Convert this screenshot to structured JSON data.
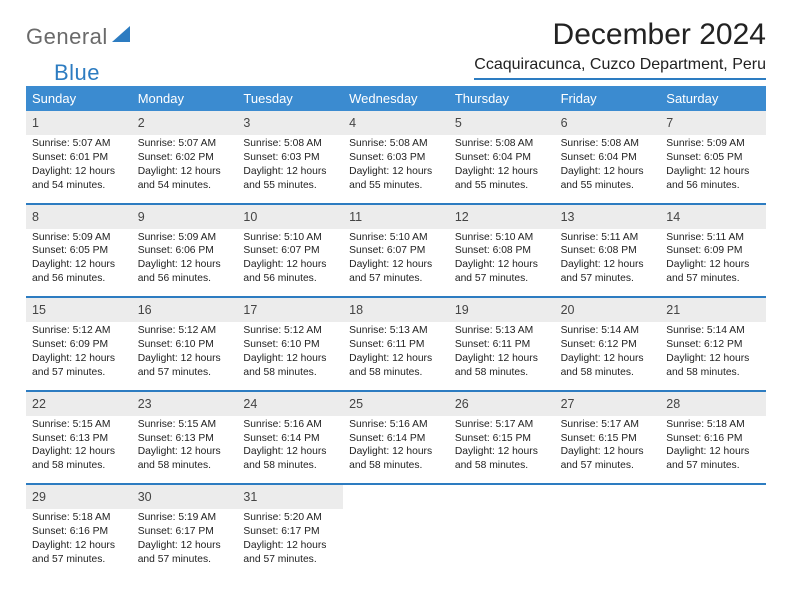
{
  "brand": {
    "part1": "General",
    "part2": "Blue"
  },
  "title": "December 2024",
  "location": "Ccaquiracunca, Cuzco Department, Peru",
  "colors": {
    "header_bg": "#3b8bd0",
    "rule": "#2d7cc1",
    "daynum_bg": "#ececec",
    "text": "#222222",
    "logo_gray": "#6a6a6a",
    "logo_blue": "#2d7cc1"
  },
  "day_headers": [
    "Sunday",
    "Monday",
    "Tuesday",
    "Wednesday",
    "Thursday",
    "Friday",
    "Saturday"
  ],
  "weeks": [
    [
      {
        "n": "1",
        "sr": "5:07 AM",
        "ss": "6:01 PM",
        "dl": "12 hours and 54 minutes."
      },
      {
        "n": "2",
        "sr": "5:07 AM",
        "ss": "6:02 PM",
        "dl": "12 hours and 54 minutes."
      },
      {
        "n": "3",
        "sr": "5:08 AM",
        "ss": "6:03 PM",
        "dl": "12 hours and 55 minutes."
      },
      {
        "n": "4",
        "sr": "5:08 AM",
        "ss": "6:03 PM",
        "dl": "12 hours and 55 minutes."
      },
      {
        "n": "5",
        "sr": "5:08 AM",
        "ss": "6:04 PM",
        "dl": "12 hours and 55 minutes."
      },
      {
        "n": "6",
        "sr": "5:08 AM",
        "ss": "6:04 PM",
        "dl": "12 hours and 55 minutes."
      },
      {
        "n": "7",
        "sr": "5:09 AM",
        "ss": "6:05 PM",
        "dl": "12 hours and 56 minutes."
      }
    ],
    [
      {
        "n": "8",
        "sr": "5:09 AM",
        "ss": "6:05 PM",
        "dl": "12 hours and 56 minutes."
      },
      {
        "n": "9",
        "sr": "5:09 AM",
        "ss": "6:06 PM",
        "dl": "12 hours and 56 minutes."
      },
      {
        "n": "10",
        "sr": "5:10 AM",
        "ss": "6:07 PM",
        "dl": "12 hours and 56 minutes."
      },
      {
        "n": "11",
        "sr": "5:10 AM",
        "ss": "6:07 PM",
        "dl": "12 hours and 57 minutes."
      },
      {
        "n": "12",
        "sr": "5:10 AM",
        "ss": "6:08 PM",
        "dl": "12 hours and 57 minutes."
      },
      {
        "n": "13",
        "sr": "5:11 AM",
        "ss": "6:08 PM",
        "dl": "12 hours and 57 minutes."
      },
      {
        "n": "14",
        "sr": "5:11 AM",
        "ss": "6:09 PM",
        "dl": "12 hours and 57 minutes."
      }
    ],
    [
      {
        "n": "15",
        "sr": "5:12 AM",
        "ss": "6:09 PM",
        "dl": "12 hours and 57 minutes."
      },
      {
        "n": "16",
        "sr": "5:12 AM",
        "ss": "6:10 PM",
        "dl": "12 hours and 57 minutes."
      },
      {
        "n": "17",
        "sr": "5:12 AM",
        "ss": "6:10 PM",
        "dl": "12 hours and 58 minutes."
      },
      {
        "n": "18",
        "sr": "5:13 AM",
        "ss": "6:11 PM",
        "dl": "12 hours and 58 minutes."
      },
      {
        "n": "19",
        "sr": "5:13 AM",
        "ss": "6:11 PM",
        "dl": "12 hours and 58 minutes."
      },
      {
        "n": "20",
        "sr": "5:14 AM",
        "ss": "6:12 PM",
        "dl": "12 hours and 58 minutes."
      },
      {
        "n": "21",
        "sr": "5:14 AM",
        "ss": "6:12 PM",
        "dl": "12 hours and 58 minutes."
      }
    ],
    [
      {
        "n": "22",
        "sr": "5:15 AM",
        "ss": "6:13 PM",
        "dl": "12 hours and 58 minutes."
      },
      {
        "n": "23",
        "sr": "5:15 AM",
        "ss": "6:13 PM",
        "dl": "12 hours and 58 minutes."
      },
      {
        "n": "24",
        "sr": "5:16 AM",
        "ss": "6:14 PM",
        "dl": "12 hours and 58 minutes."
      },
      {
        "n": "25",
        "sr": "5:16 AM",
        "ss": "6:14 PM",
        "dl": "12 hours and 58 minutes."
      },
      {
        "n": "26",
        "sr": "5:17 AM",
        "ss": "6:15 PM",
        "dl": "12 hours and 58 minutes."
      },
      {
        "n": "27",
        "sr": "5:17 AM",
        "ss": "6:15 PM",
        "dl": "12 hours and 57 minutes."
      },
      {
        "n": "28",
        "sr": "5:18 AM",
        "ss": "6:16 PM",
        "dl": "12 hours and 57 minutes."
      }
    ],
    [
      {
        "n": "29",
        "sr": "5:18 AM",
        "ss": "6:16 PM",
        "dl": "12 hours and 57 minutes."
      },
      {
        "n": "30",
        "sr": "5:19 AM",
        "ss": "6:17 PM",
        "dl": "12 hours and 57 minutes."
      },
      {
        "n": "31",
        "sr": "5:20 AM",
        "ss": "6:17 PM",
        "dl": "12 hours and 57 minutes."
      },
      null,
      null,
      null,
      null
    ]
  ],
  "labels": {
    "sunrise": "Sunrise:",
    "sunset": "Sunset:",
    "daylight": "Daylight:"
  }
}
